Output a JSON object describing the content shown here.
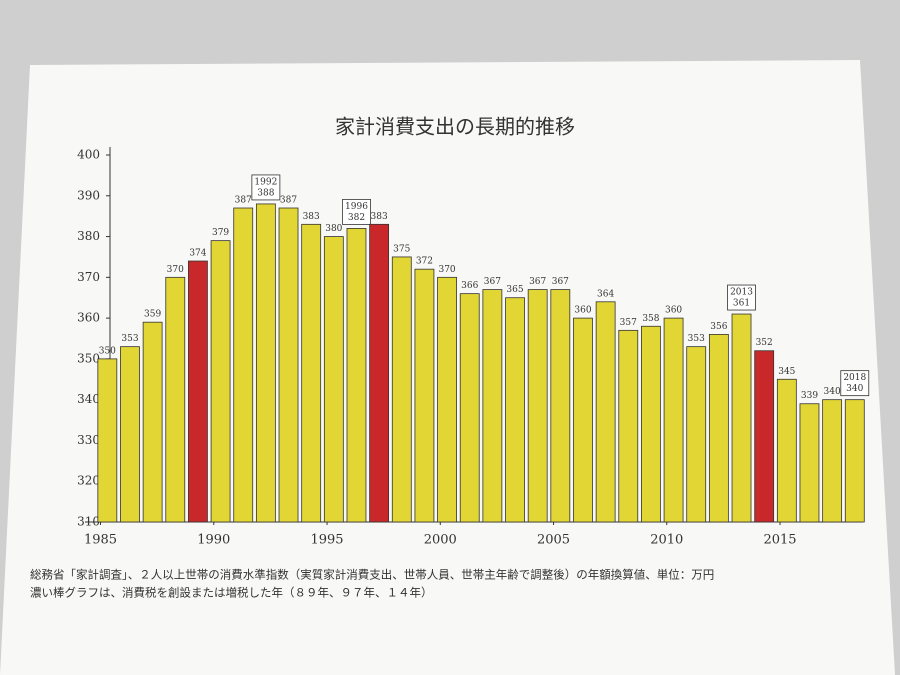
{
  "chart_data": {
    "type": "bar",
    "title": "家計消費支出の長期的推移",
    "x": [
      1985,
      1986,
      1987,
      1988,
      1989,
      1990,
      1991,
      1992,
      1993,
      1994,
      1995,
      1996,
      1997,
      1998,
      1999,
      2000,
      2001,
      2002,
      2003,
      2004,
      2005,
      2006,
      2007,
      2008,
      2009,
      2010,
      2011,
      2012,
      2013,
      2014,
      2015,
      2016,
      2017,
      2018
    ],
    "values": [
      350,
      353,
      359,
      370,
      374,
      379,
      387,
      388,
      387,
      383,
      380,
      382,
      383,
      375,
      372,
      370,
      366,
      367,
      365,
      367,
      367,
      360,
      364,
      357,
      358,
      360,
      353,
      356,
      361,
      352,
      345,
      339,
      340,
      340
    ],
    "colors": [
      "#e2d635",
      "#e2d635",
      "#e2d635",
      "#e2d635",
      "#c8282a",
      "#e2d635",
      "#e2d635",
      "#e2d635",
      "#e2d635",
      "#e2d635",
      "#e2d635",
      "#e2d635",
      "#c8282a",
      "#e2d635",
      "#e2d635",
      "#e2d635",
      "#e2d635",
      "#e2d635",
      "#e2d635",
      "#e2d635",
      "#e2d635",
      "#e2d635",
      "#e2d635",
      "#e2d635",
      "#e2d635",
      "#e2d635",
      "#e2d635",
      "#e2d635",
      "#e2d635",
      "#c8282a",
      "#e2d635",
      "#e2d635",
      "#e2d635",
      "#e2d635"
    ],
    "annotations": [
      "1992",
      "1996",
      "2013",
      "2018"
    ],
    "ylim": [
      310,
      400
    ],
    "yticks": [
      310,
      320,
      330,
      340,
      350,
      360,
      370,
      380,
      390,
      400
    ],
    "xticks": [
      1985,
      1990,
      1995,
      2000,
      2005,
      2010,
      2015
    ],
    "notes": [
      "総務省「家計調査」、２人以上世帯の消費水準指数（実質家計消費支出、世帯人員、世帯主年齢で調整後）の年額換算値、単位：万円",
      "濃い棒グラフは、消費税を創設または増税した年（８９年、９７年、１４年）"
    ]
  }
}
